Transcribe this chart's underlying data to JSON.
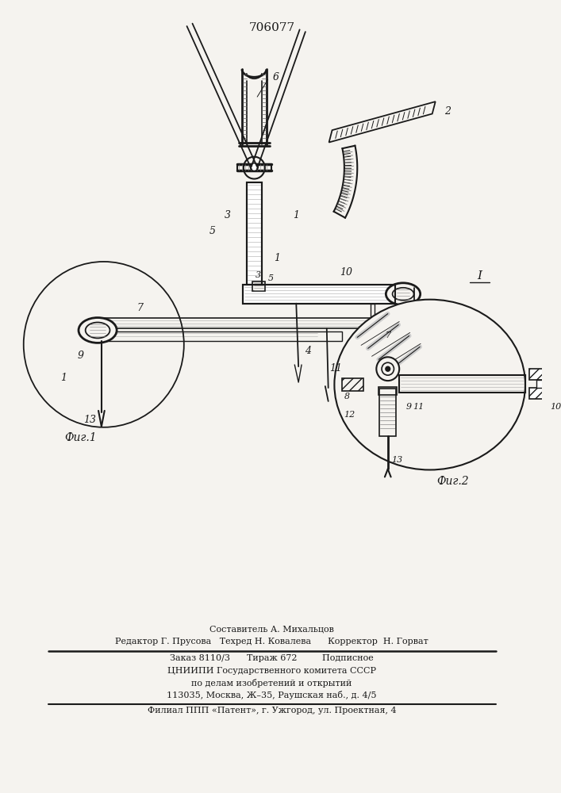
{
  "patent_number": "706077",
  "bg": "#f5f3ef",
  "fig1_label": "Фиг.1",
  "fig2_label": "Фиг.2",
  "footer_lines": [
    "Составитель А. Михальцов",
    "Редактор Г. Прусова   Техред Н. Ковалева      Корректор  Н. Горват",
    "Заказ 8110/3      Тираж 672         Подписное",
    "ЦНИИПИ Государственного комитета СССР",
    "по делам изобретений и открытий",
    "113035, Москва, Ж–35, Раушская наб., д. 4/5",
    "Филиал ППП «Патент», г. Ужгород, ул. Проектная, 4"
  ]
}
